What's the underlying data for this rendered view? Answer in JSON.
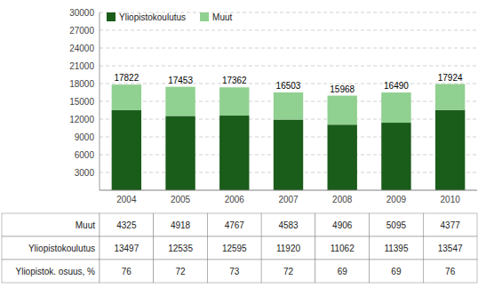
{
  "chart_data": {
    "type": "bar",
    "stacked": true,
    "categories": [
      "2004",
      "2005",
      "2006",
      "2007",
      "2008",
      "2009",
      "2010"
    ],
    "series": [
      {
        "name": "Yliopistokoulutus",
        "color": "#1a5c1a",
        "values": [
          13497,
          12535,
          12595,
          11920,
          11062,
          11395,
          13547
        ]
      },
      {
        "name": "Muut",
        "color": "#90d090",
        "values": [
          4325,
          4918,
          4767,
          4583,
          4906,
          5095,
          4377
        ]
      }
    ],
    "totals": [
      17822,
      17453,
      17362,
      16503,
      15968,
      16490,
      17924
    ],
    "share": {
      "label": "Yliopistok. osuus, %",
      "values": [
        76,
        72,
        73,
        72,
        69,
        69,
        76
      ]
    },
    "ylim": [
      0,
      30000
    ],
    "yticks": [
      3000,
      6000,
      9000,
      12000,
      15000,
      18000,
      21000,
      24000,
      27000,
      30000
    ],
    "grid": true,
    "legend": "upper left"
  }
}
